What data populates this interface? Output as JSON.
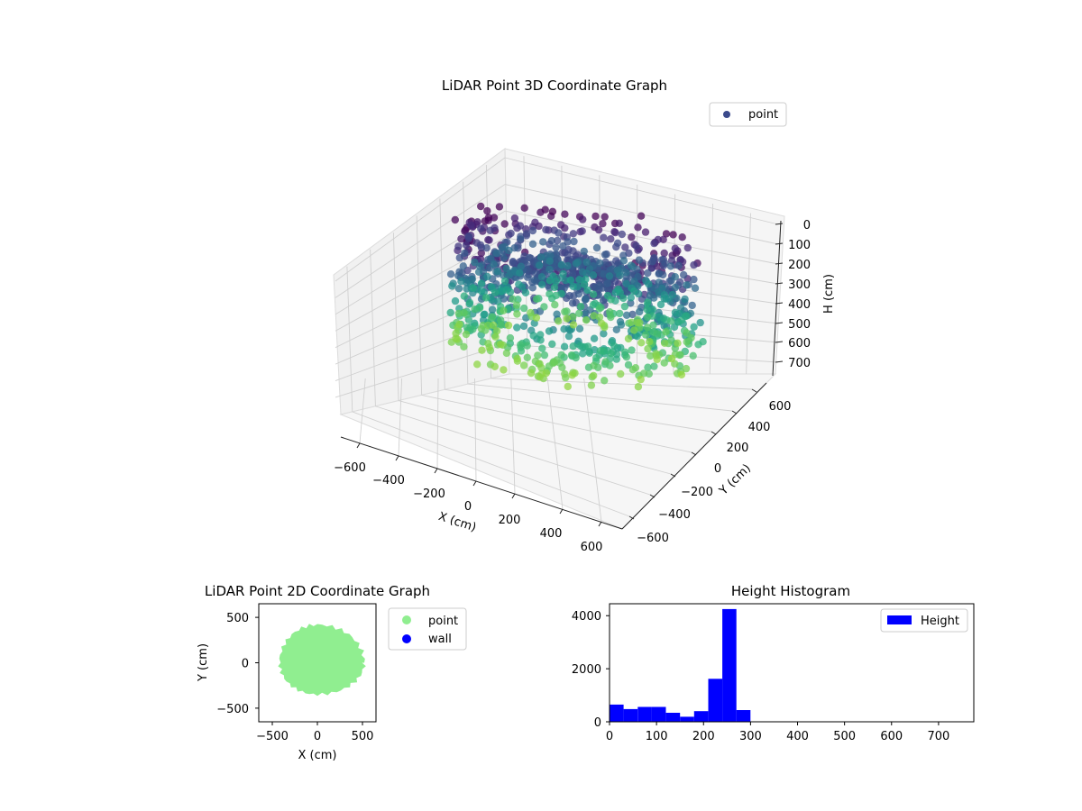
{
  "chart_data": [
    {
      "type": "scatter",
      "projection": "3d",
      "title": "LiDAR Point 3D Coordinate Graph",
      "xlabel": "X (cm)",
      "ylabel": "Y (cm)",
      "zlabel": "H (cm)",
      "xlim": [
        -650,
        650
      ],
      "ylim": [
        -650,
        650
      ],
      "zlim": [
        0,
        750
      ],
      "z_inverted": true,
      "x_ticks": [
        "−600",
        "−400",
        "−200",
        "0",
        "200",
        "400",
        "600"
      ],
      "y_ticks": [
        "−600",
        "−400",
        "−200",
        "0",
        "200",
        "400",
        "600"
      ],
      "z_ticks": [
        "0",
        "100",
        "200",
        "300",
        "400",
        "500",
        "600",
        "700"
      ],
      "colormap": "viridis",
      "legend": {
        "position": "top-right",
        "entries": [
          {
            "label": "point",
            "color": "#3b4a8c"
          }
        ]
      },
      "series": [
        {
          "name": "point",
          "description_shape": "ring of points",
          "ring_radius_cm": [
            300,
            500
          ],
          "height_cm": [
            130,
            300
          ],
          "inner_floor_height_cm": 450
        }
      ],
      "grid": true
    },
    {
      "type": "scatter",
      "title": "LiDAR Point 2D Coordinate Graph",
      "xlabel": "X (cm)",
      "ylabel": "Y (cm)",
      "xlim": [
        -650,
        650
      ],
      "ylim": [
        -650,
        650
      ],
      "x_ticks": [
        "−500",
        "0",
        "500"
      ],
      "y_ticks": [
        "500",
        "0",
        "−500"
      ],
      "legend": {
        "position": "outside-right",
        "entries": [
          {
            "label": "point",
            "color": "#90ee90"
          },
          {
            "label": "wall",
            "color": "#0000ff"
          }
        ]
      },
      "series": [
        {
          "name": "point",
          "color": "#90ee90",
          "extent_x": [
            -420,
            520
          ],
          "extent_y": [
            -350,
            420
          ]
        },
        {
          "name": "wall",
          "color": "#0000ff",
          "points": []
        }
      ]
    },
    {
      "type": "bar",
      "subtype": "histogram",
      "title": "Height Histogram",
      "xlabel": "",
      "ylabel": "",
      "xlim": [
        0,
        775
      ],
      "ylim": [
        0,
        4450
      ],
      "x_ticks": [
        "0",
        "100",
        "200",
        "300",
        "400",
        "500",
        "600",
        "700"
      ],
      "y_ticks": [
        "0",
        "2000",
        "4000"
      ],
      "bin_width": 30,
      "bin_edges": [
        0,
        30,
        60,
        90,
        120,
        150,
        180,
        210,
        240,
        270,
        300,
        330,
        360,
        390,
        420,
        450,
        480,
        510,
        540,
        570,
        600,
        630,
        660,
        690,
        720,
        750
      ],
      "values": [
        650,
        480,
        560,
        560,
        340,
        190,
        400,
        1620,
        4250,
        440,
        0,
        0,
        0,
        0,
        0,
        0,
        0,
        0,
        0,
        0,
        0,
        0,
        0,
        0,
        0
      ],
      "color": "#0000ff",
      "legend": {
        "position": "top-right",
        "entries": [
          {
            "label": "Height",
            "color": "#0000ff"
          }
        ]
      }
    }
  ]
}
